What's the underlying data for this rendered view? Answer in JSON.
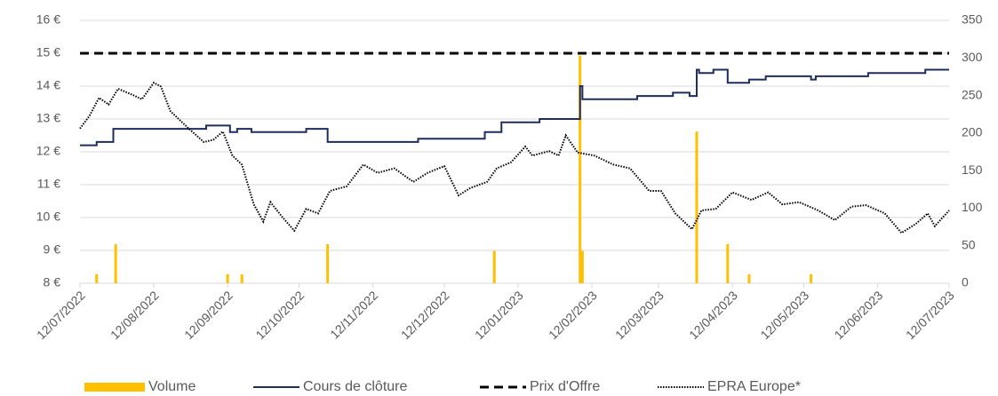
{
  "chart_data": {
    "type": "line",
    "xlim": [
      "12/07/2022",
      "12/07/2023"
    ],
    "xticks": [
      "12/07/2022",
      "12/08/2022",
      "12/09/2022",
      "12/10/2022",
      "12/11/2022",
      "12/12/2022",
      "12/01/2023",
      "12/02/2023",
      "12/03/2023",
      "12/04/2023",
      "12/05/2023",
      "12/06/2023",
      "12/07/2023"
    ],
    "ylim": [
      8,
      16
    ],
    "yticks": [
      {
        "value": 8,
        "label": "8 €"
      },
      {
        "value": 9,
        "label": "9 €"
      },
      {
        "value": 10,
        "label": "10 €"
      },
      {
        "value": 11,
        "label": "11 €"
      },
      {
        "value": 12,
        "label": "12 €"
      },
      {
        "value": 13,
        "label": "13 €"
      },
      {
        "value": 14,
        "label": "14 €"
      },
      {
        "value": 15,
        "label": "15 €"
      },
      {
        "value": 16,
        "label": "16 €"
      }
    ],
    "y2lim": [
      0,
      350
    ],
    "y2ticks": [
      0,
      50,
      100,
      150,
      200,
      250,
      300,
      350
    ],
    "grid": true,
    "legend": "bottom",
    "series": [
      {
        "name": "Volume",
        "type": "bar",
        "axis": "y2",
        "color": "#ffc000",
        "x": [
          "19/07/2022",
          "27/07/2022",
          "12/09/2022",
          "18/09/2022",
          "24/10/2022",
          "02/01/2023",
          "07/02/2023",
          "08/02/2023",
          "28/03/2023",
          "10/04/2023",
          "19/04/2023",
          "15/05/2023"
        ],
        "values": [
          12,
          52,
          12,
          12,
          52,
          43,
          303,
          43,
          202,
          52,
          12,
          12
        ]
      },
      {
        "name": "Cours de clôture",
        "type": "line",
        "step": true,
        "color": "#1f2d5c",
        "dash": "solid",
        "x": [
          "12/07/2022",
          "19/07/2022",
          "26/07/2022",
          "03/09/2022",
          "13/09/2022",
          "16/09/2022",
          "22/09/2022",
          "15/10/2022",
          "24/10/2022",
          "01/12/2022",
          "29/12/2022",
          "05/01/2023",
          "21/01/2023",
          "07/02/2023",
          "08/02/2023",
          "03/03/2023",
          "18/03/2023",
          "25/03/2023",
          "28/03/2023",
          "29/03/2023",
          "04/04/2023",
          "10/04/2023",
          "19/04/2023",
          "26/04/2023",
          "15/05/2023",
          "17/05/2023",
          "08/06/2023",
          "02/07/2023",
          "12/07/2023"
        ],
        "values": [
          12.2,
          12.3,
          12.7,
          12.8,
          12.6,
          12.7,
          12.6,
          12.7,
          12.3,
          12.4,
          12.6,
          12.9,
          13.0,
          14.0,
          13.6,
          13.7,
          13.8,
          13.7,
          14.5,
          14.4,
          14.5,
          14.1,
          14.2,
          14.3,
          14.2,
          14.3,
          14.4,
          14.5,
          14.5
        ]
      },
      {
        "name": "Prix d'Offre",
        "type": "line",
        "color": "#000000",
        "dash": "dashed",
        "x": [
          "12/07/2022",
          "12/07/2023"
        ],
        "values": [
          15,
          15
        ]
      },
      {
        "name": "EPRA Europe*",
        "type": "line",
        "axis": "y2",
        "color": "#000000",
        "dash": "dotted",
        "x": [
          "12/07/2022",
          "16/07/2022",
          "20/07/2022",
          "24/07/2022",
          "28/07/2022",
          "03/08/2022",
          "07/08/2022",
          "12/08/2022",
          "15/08/2022",
          "19/08/2022",
          "26/08/2022",
          "02/09/2022",
          "06/09/2022",
          "10/09/2022",
          "14/09/2022",
          "18/09/2022",
          "23/09/2022",
          "27/09/2022",
          "30/09/2022",
          "05/10/2022",
          "10/10/2022",
          "15/10/2022",
          "20/10/2022",
          "25/10/2022",
          "01/11/2022",
          "08/11/2022",
          "14/11/2022",
          "21/11/2022",
          "29/11/2022",
          "05/12/2022",
          "12/12/2022",
          "18/12/2022",
          "23/12/2022",
          "30/12/2022",
          "03/01/2023",
          "09/01/2023",
          "15/01/2023",
          "18/01/2023",
          "25/01/2023",
          "29/01/2023",
          "01/02/2023",
          "06/02/2023",
          "13/02/2023",
          "21/02/2023",
          "28/02/2023",
          "08/03/2023",
          "13/03/2023",
          "19/03/2023",
          "26/03/2023",
          "30/03/2023",
          "05/04/2023",
          "12/04/2023",
          "20/04/2023",
          "27/04/2023",
          "03/05/2023",
          "10/05/2023",
          "18/05/2023",
          "25/05/2023",
          "01/06/2023",
          "07/06/2023",
          "15/06/2023",
          "22/06/2023",
          "28/06/2023",
          "03/07/2023",
          "06/07/2023",
          "12/07/2023"
        ],
        "values": [
          206,
          223,
          247,
          238,
          259,
          251,
          245,
          267,
          262,
          229,
          208,
          188,
          191,
          202,
          170,
          158,
          105,
          82,
          108,
          88,
          70,
          99,
          93,
          123,
          129,
          158,
          147,
          153,
          135,
          147,
          156,
          117,
          127,
          135,
          153,
          161,
          182,
          170,
          176,
          170,
          197,
          174,
          170,
          158,
          153,
          123,
          123,
          93,
          72,
          97,
          99,
          121,
          111,
          121,
          105,
          108,
          97,
          84,
          102,
          104,
          93,
          67,
          79,
          93,
          76,
          97
        ]
      }
    ]
  }
}
